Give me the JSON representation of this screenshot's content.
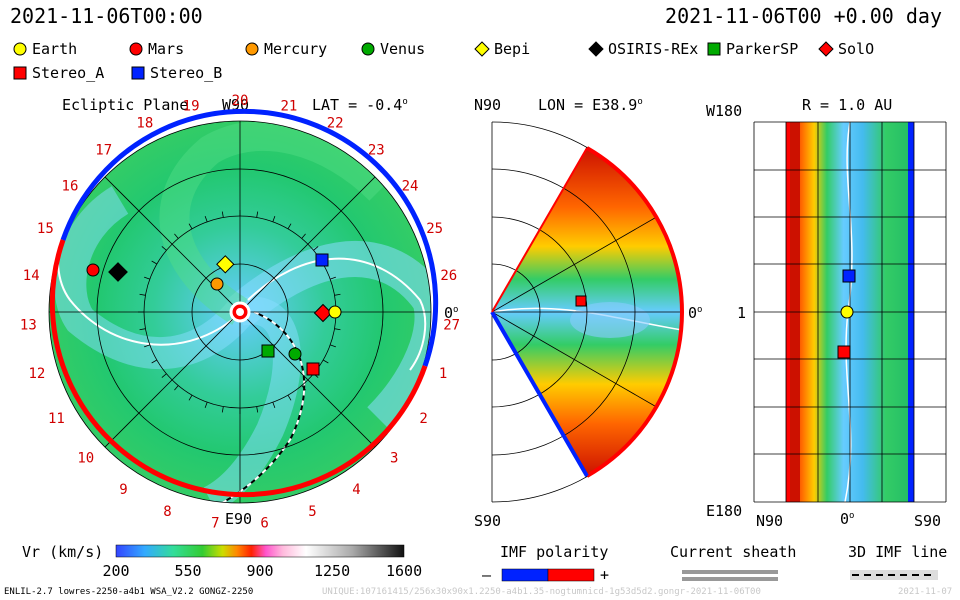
{
  "header": {
    "left_time": "2021-11-06T00:00",
    "right_time": "2021-11-06T00 +0.00 day"
  },
  "legend": [
    {
      "label": "Earth",
      "shape": "circle",
      "color": "#ffff00"
    },
    {
      "label": "Mars",
      "shape": "circle",
      "color": "#ff0000"
    },
    {
      "label": "Mercury",
      "shape": "circle",
      "color": "#ff9900"
    },
    {
      "label": "Venus",
      "shape": "circle",
      "color": "#00aa00"
    },
    {
      "label": "Bepi",
      "shape": "diamond",
      "color": "#ffff00"
    },
    {
      "label": "OSIRIS-REx",
      "shape": "diamond",
      "color": "#000000"
    },
    {
      "label": "ParkerSP",
      "shape": "square",
      "color": "#00aa00"
    },
    {
      "label": "SolO",
      "shape": "diamond",
      "color": "#ff0000"
    },
    {
      "label": "Stereo_A",
      "shape": "square",
      "color": "#ff0000"
    },
    {
      "label": "Stereo_B",
      "shape": "square",
      "color": "#0022ff"
    }
  ],
  "ecliptic": {
    "title": "Ecliptic Plane",
    "top_label": "W90",
    "bottom_label": "E90",
    "right_label": "0",
    "right_label_sup": "o",
    "lat_label": "LAT = -0.4",
    "lat_sup": "o",
    "carrington_labels": [
      "20",
      "21",
      "22",
      "23",
      "24",
      "25",
      "26",
      "27",
      "1",
      "2",
      "3",
      "4",
      "5",
      "6",
      "7",
      "8",
      "9",
      "10",
      "11",
      "12",
      "13",
      "14",
      "15",
      "16",
      "17",
      "18",
      "19"
    ]
  },
  "meridional": {
    "top_label": "N90",
    "bottom_label": "S90",
    "right_label": "0",
    "right_sup": "o",
    "lon_label": "LON = E38.9",
    "lon_sup": "o"
  },
  "radial": {
    "title": "R = 1.0 AU",
    "top_label": "W180",
    "bottom_label": "E180",
    "left_tick": "1",
    "x_left": "N90",
    "x_mid": "0",
    "x_mid_sup": "o",
    "x_right": "S90"
  },
  "colorbar": {
    "title": "Vr (km/s)",
    "ticks": [
      "200",
      "550",
      "900",
      "1250",
      "1600"
    ]
  },
  "imf": {
    "title": "IMF polarity",
    "minus": "–",
    "plus": "+",
    "neg_color": "#0022ff",
    "pos_color": "#ff0000"
  },
  "sheath": {
    "title": "Current sheath"
  },
  "imf_line": {
    "title": "3D IMF line"
  },
  "footer": {
    "model": "ENLIL-2.7 lowres-2250-a4b1 WSA_V2.2 GONGZ-2250",
    "watermark": "UNIQUE:107161415/256x30x90x1.2250-a4b1.35-nogtumnicd-1g53d5d2.gongr-2021-11-06T00",
    "right_ghost": "2021-11-07"
  }
}
